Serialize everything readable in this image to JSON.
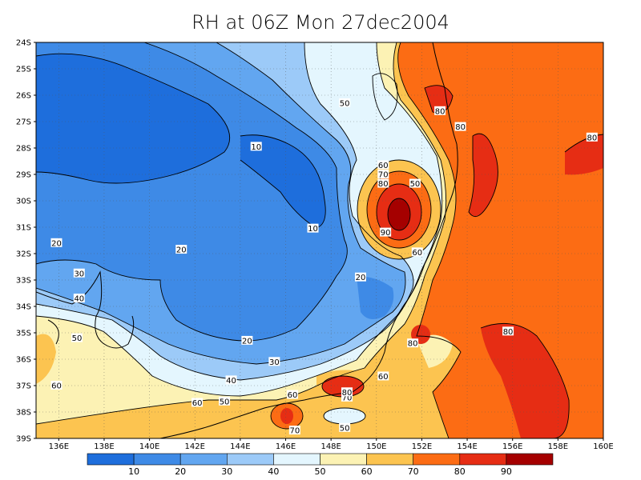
{
  "title": "RH at 06Z Mon 27dec2004",
  "map": {
    "lat_labels": [
      "24S",
      "25S",
      "26S",
      "27S",
      "28S",
      "29S",
      "30S",
      "31S",
      "32S",
      "33S",
      "34S",
      "35S",
      "36S",
      "37S",
      "38S",
      "39S"
    ],
    "lon_labels": [
      "136E",
      "138E",
      "140E",
      "142E",
      "144E",
      "146E",
      "148E",
      "150E",
      "152E",
      "154E",
      "156E",
      "158E",
      "160E"
    ]
  },
  "contour_labels": [
    {
      "text": "10",
      "lon": 144.7,
      "lat": -27.95
    },
    {
      "text": "10",
      "lon": 147.2,
      "lat": -31.05
    },
    {
      "text": "20",
      "lon": 135.9,
      "lat": -31.6
    },
    {
      "text": "20",
      "lon": 141.4,
      "lat": -31.85
    },
    {
      "text": "20",
      "lon": 144.3,
      "lat": -35.3
    },
    {
      "text": "20",
      "lon": 149.3,
      "lat": -32.9
    },
    {
      "text": "30",
      "lon": 136.9,
      "lat": -32.75
    },
    {
      "text": "30",
      "lon": 145.5,
      "lat": -36.1
    },
    {
      "text": "40",
      "lon": 136.9,
      "lat": -33.7
    },
    {
      "text": "40",
      "lon": 143.6,
      "lat": -36.8
    },
    {
      "text": "50",
      "lon": 136.8,
      "lat": -35.2
    },
    {
      "text": "50",
      "lon": 143.3,
      "lat": -37.6
    },
    {
      "text": "50",
      "lon": 148.6,
      "lat": -26.3
    },
    {
      "text": "50",
      "lon": 151.7,
      "lat": -29.35
    },
    {
      "text": "50",
      "lon": 148.6,
      "lat": -38.6
    },
    {
      "text": "60",
      "lon": 135.9,
      "lat": -37.0
    },
    {
      "text": "60",
      "lon": 142.1,
      "lat": -37.65
    },
    {
      "text": "60",
      "lon": 146.3,
      "lat": -37.35
    },
    {
      "text": "60",
      "lon": 150.3,
      "lat": -28.65
    },
    {
      "text": "60",
      "lon": 150.3,
      "lat": -36.65
    },
    {
      "text": "60",
      "lon": 151.8,
      "lat": -31.95
    },
    {
      "text": "70",
      "lon": 150.3,
      "lat": -29.0
    },
    {
      "text": "70",
      "lon": 148.7,
      "lat": -37.45
    },
    {
      "text": "70",
      "lon": 146.4,
      "lat": -38.7
    },
    {
      "text": "80",
      "lon": 150.3,
      "lat": -29.35
    },
    {
      "text": "80",
      "lon": 151.6,
      "lat": -35.4
    },
    {
      "text": "80",
      "lon": 148.7,
      "lat": -37.25
    },
    {
      "text": "80",
      "lon": 152.8,
      "lat": -26.6
    },
    {
      "text": "80",
      "lon": 153.7,
      "lat": -27.2
    },
    {
      "text": "80",
      "lon": 155.8,
      "lat": -34.95
    },
    {
      "text": "80",
      "lon": 159.5,
      "lat": -27.6
    },
    {
      "text": "90",
      "lon": 150.4,
      "lat": -31.2
    }
  ],
  "colorbar": {
    "labels": [
      "10",
      "20",
      "30",
      "40",
      "50",
      "60",
      "70",
      "80",
      "90"
    ],
    "colors": [
      "#1e6edc",
      "#3e8ae6",
      "#62a6f0",
      "#9ccaf8",
      "#e4f6fe",
      "#fcf2b4",
      "#fcc450",
      "#fc6c14",
      "#e62d14",
      "#a50000"
    ]
  },
  "palette": {
    "c10": "#1e6edc",
    "c20": "#3e8ae6",
    "c30": "#62a6f0",
    "c40": "#9ccaf8",
    "c50": "#e4f6fe",
    "c60": "#fcf2b4",
    "c70": "#fcc450",
    "c80": "#fc6c14",
    "c90": "#e62d14",
    "c100": "#a50000"
  }
}
